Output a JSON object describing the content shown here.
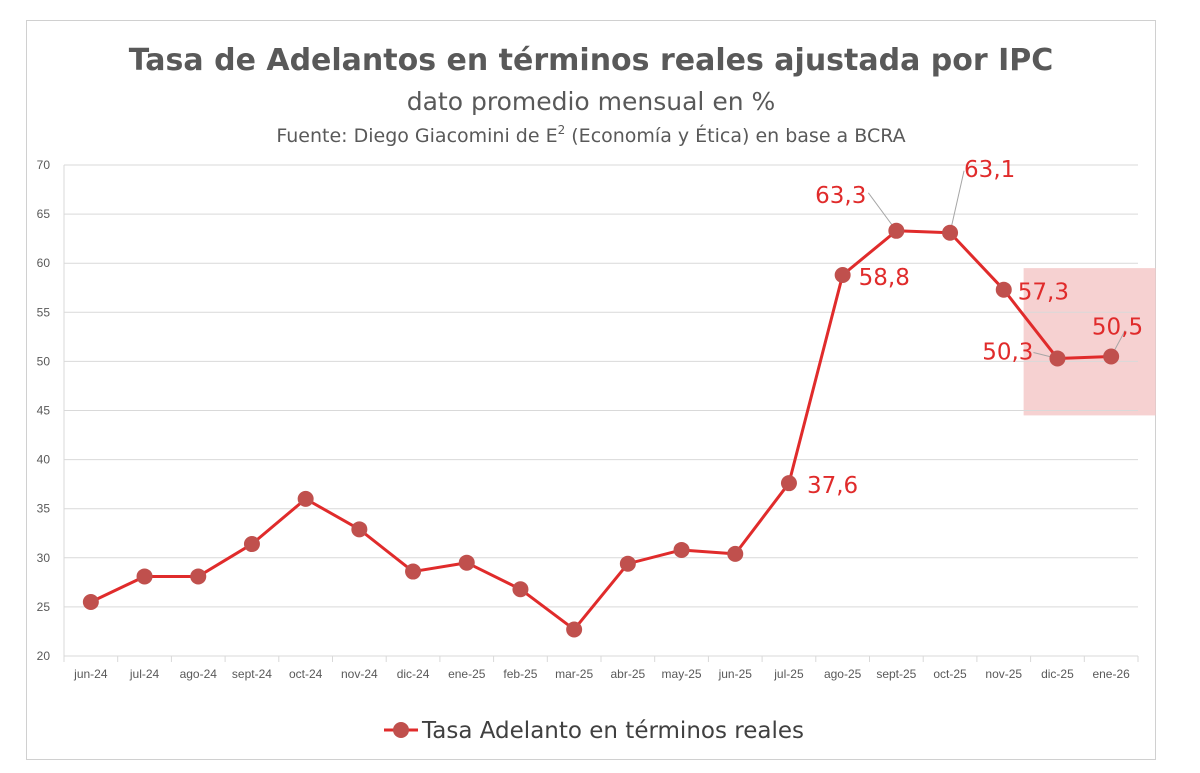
{
  "chart_data": {
    "type": "line",
    "title": "Tasa de Adelantos en términos reales ajustada por IPC",
    "subtitle": "dato promedio mensual en %",
    "source_prefix": "Fuente: Diego Giacomini de E",
    "source_sup": "2",
    "source_suffix": " (Economía y Ética) en base a BCRA",
    "categories": [
      "jun-24",
      "jul-24",
      "ago-24",
      "sept-24",
      "oct-24",
      "nov-24",
      "dic-24",
      "ene-25",
      "feb-25",
      "mar-25",
      "abr-25",
      "may-25",
      "jun-25",
      "jul-25",
      "ago-25",
      "sept-25",
      "oct-25",
      "nov-25",
      "dic-25",
      "ene-26"
    ],
    "series": [
      {
        "name": "Tasa  Adelanto en términos reales",
        "values": [
          25.5,
          28.1,
          28.1,
          31.4,
          36.0,
          32.9,
          28.6,
          29.5,
          26.8,
          22.7,
          29.4,
          30.8,
          30.4,
          37.6,
          58.8,
          63.3,
          63.1,
          57.3,
          50.3,
          50.5
        ]
      }
    ],
    "ylim": [
      20,
      70
    ],
    "yticks": [
      "20",
      "25",
      "30",
      "35",
      "40",
      "45",
      "50",
      "55",
      "60",
      "65",
      "70"
    ],
    "data_labels": [
      {
        "index": 13,
        "text": "37,6"
      },
      {
        "index": 14,
        "text": "58,8"
      },
      {
        "index": 15,
        "text": "63,3"
      },
      {
        "index": 16,
        "text": "63,1"
      },
      {
        "index": 17,
        "text": "57,3"
      },
      {
        "index": 18,
        "text": "50,3"
      },
      {
        "index": 19,
        "text": "50,5"
      }
    ],
    "highlight_range": {
      "from_index": 18,
      "to_index": 19,
      "y_from": 44.5,
      "y_to": 59.5
    },
    "line_color": "#e02b2b",
    "marker_color": "#c0504d",
    "highlight_color": "#f4c6c6",
    "grid": true,
    "legend_position": "bottom"
  }
}
